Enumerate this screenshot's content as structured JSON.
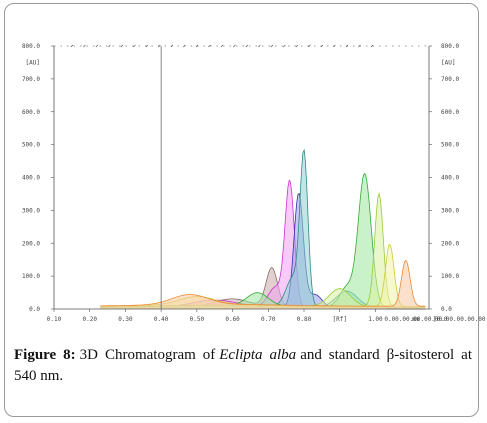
{
  "caption": {
    "label": "Figure 8:",
    "text_before": "3D Chromatogram of",
    "italic": "Eclipta alba",
    "text_after": "and standard β-sitosterol at 540 nm."
  },
  "chart_data": {
    "type": "area",
    "ylabel_left": "[AU]",
    "ylabel_right": "[AU]",
    "xlabel": "[Rf]",
    "ylim": [
      0,
      800
    ],
    "xlim": [
      0.1,
      1.15
    ],
    "y_ticks": [
      "0.0",
      "100.0",
      "200.0",
      "300.0",
      "400.0",
      "500.0",
      "600.0",
      "700.0",
      "800.0"
    ],
    "x_ticks": [
      {
        "v": 0.1,
        "t": "0.10"
      },
      {
        "v": 0.2,
        "t": "0.20"
      },
      {
        "v": 0.3,
        "t": "0.30"
      },
      {
        "v": 0.4,
        "t": "0.40"
      },
      {
        "v": 0.5,
        "t": "0.50"
      },
      {
        "v": 0.6,
        "t": "0.60"
      },
      {
        "v": 0.7,
        "t": "0.70"
      },
      {
        "v": 0.8,
        "t": "0.80"
      },
      {
        "v": 0.9,
        "t": "[Rf]"
      },
      {
        "v": 1.0,
        "t": "1.00"
      }
    ],
    "x_tail_label": "0.00.00.00.00.00.00.00.00.00",
    "x_unit_label": "mm",
    "x_end_label": "[0.0",
    "marker_line_x": 0.4,
    "series": [
      {
        "color": "#8a6a6a",
        "fill": "#c9a9a9",
        "peaks": [
          {
            "x": 0.71,
            "y": 120,
            "w": 0.016
          },
          {
            "x": 0.6,
            "y": 25,
            "w": 0.05
          }
        ]
      },
      {
        "color": "#cc33cc",
        "fill": "#f0a0f0",
        "peaks": [
          {
            "x": 0.76,
            "y": 380,
            "w": 0.013
          },
          {
            "x": 0.72,
            "y": 60,
            "w": 0.02
          },
          {
            "x": 0.55,
            "y": 20,
            "w": 0.06
          }
        ]
      },
      {
        "color": "#3333aa",
        "fill": "#9a9af0",
        "peaks": [
          {
            "x": 0.785,
            "y": 345,
            "w": 0.013
          },
          {
            "x": 0.83,
            "y": 40,
            "w": 0.02
          }
        ]
      },
      {
        "color": "#338888",
        "fill": "#8fd0d0",
        "peaks": [
          {
            "x": 0.8,
            "y": 450,
            "w": 0.011
          },
          {
            "x": 0.77,
            "y": 90,
            "w": 0.02
          },
          {
            "x": 0.92,
            "y": 50,
            "w": 0.03
          }
        ]
      },
      {
        "color": "#33aa33",
        "fill": "#9ee89e",
        "peaks": [
          {
            "x": 0.97,
            "y": 405,
            "w": 0.018
          },
          {
            "x": 0.67,
            "y": 40,
            "w": 0.03
          },
          {
            "x": 0.92,
            "y": 60,
            "w": 0.02
          }
        ]
      },
      {
        "color": "#99cc33",
        "fill": "#d8f0a0",
        "peaks": [
          {
            "x": 1.01,
            "y": 345,
            "w": 0.012
          },
          {
            "x": 0.9,
            "y": 55,
            "w": 0.03
          }
        ]
      },
      {
        "color": "#cccc33",
        "fill": "#f2f2a8",
        "peaks": [
          {
            "x": 1.04,
            "y": 190,
            "w": 0.012
          },
          {
            "x": 0.5,
            "y": 25,
            "w": 0.05
          }
        ]
      },
      {
        "color": "#ee8833",
        "fill": "#f8c8a0",
        "peaks": [
          {
            "x": 1.085,
            "y": 140,
            "w": 0.012
          },
          {
            "x": 0.48,
            "y": 30,
            "w": 0.05
          }
        ]
      }
    ]
  }
}
